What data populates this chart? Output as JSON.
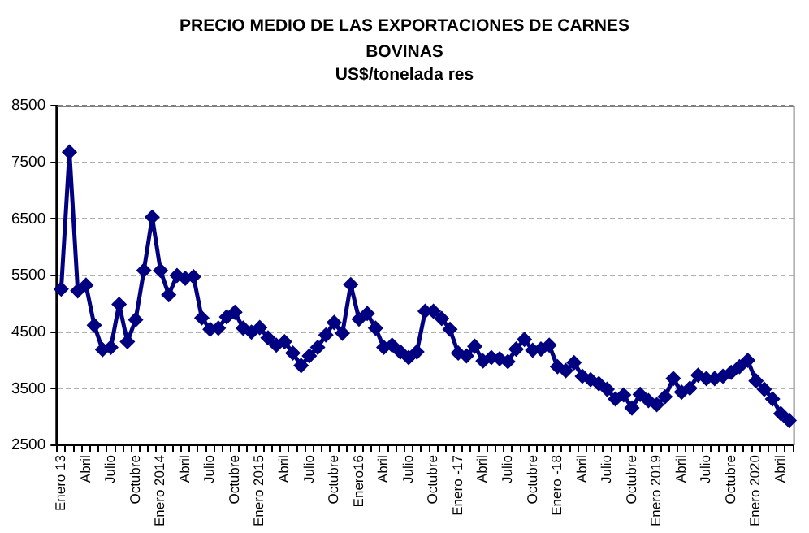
{
  "chart_data": {
    "type": "line",
    "title": "PRECIO MEDIO DE LAS EXPORTACIONES DE CARNES BOVINAS",
    "subtitle": "US$/tonelada res",
    "categories": [
      "Enero 13",
      null,
      null,
      "Abril",
      null,
      null,
      "Julio",
      null,
      null,
      "Octubre",
      null,
      null,
      "Enero 2014",
      null,
      null,
      "Abril",
      null,
      null,
      "Julio",
      null,
      null,
      "Octubre",
      null,
      null,
      "Enero 2015",
      null,
      null,
      "Abril",
      null,
      null,
      "Julio",
      null,
      null,
      "Octubre",
      null,
      null,
      "Enero16",
      null,
      null,
      "Abril",
      null,
      null,
      "Julio",
      null,
      null,
      "Octubre",
      null,
      null,
      "Enero -17",
      null,
      null,
      "Abril",
      null,
      null,
      "Julio",
      null,
      null,
      "Octubre",
      null,
      null,
      "Enero -18",
      null,
      null,
      "Abril",
      null,
      null,
      "Julio",
      null,
      null,
      "Octubre",
      null,
      null,
      "Enero 2019",
      null,
      null,
      "Abril",
      null,
      null,
      "Julio",
      null,
      null,
      "Octubre",
      null,
      null,
      "Enero 2020",
      null,
      null,
      "Abril",
      null
    ],
    "series": [
      {
        "color": "#000080",
        "values": [
          5260,
          7680,
          5230,
          5330,
          4620,
          4190,
          4230,
          4990,
          4330,
          4720,
          5590,
          6530,
          5590,
          5160,
          5500,
          5450,
          5480,
          4750,
          4550,
          4570,
          4770,
          4850,
          4570,
          4500,
          4580,
          4400,
          4270,
          4330,
          4130,
          3910,
          4080,
          4230,
          4450,
          4670,
          4480,
          5340,
          4730,
          4830,
          4570,
          4230,
          4270,
          4150,
          4050,
          4150,
          4870,
          4870,
          4740,
          4550,
          4130,
          4080,
          4250,
          3990,
          4050,
          4030,
          3980,
          4200,
          4370,
          4180,
          4200,
          4270,
          3890,
          3820,
          3960,
          3720,
          3660,
          3590,
          3490,
          3320,
          3390,
          3160,
          3400,
          3290,
          3220,
          3360,
          3680,
          3440,
          3510,
          3740,
          3680,
          3680,
          3720,
          3790,
          3890,
          4000,
          3640,
          3490,
          3320,
          3060,
          2940
        ]
      }
    ],
    "ylim": [
      2500,
      8500
    ],
    "yticks": [
      2500,
      3500,
      4500,
      5500,
      6500,
      7500,
      8500
    ],
    "grid": "y",
    "marker": "diamond",
    "line_style": "solid",
    "legend": false
  }
}
